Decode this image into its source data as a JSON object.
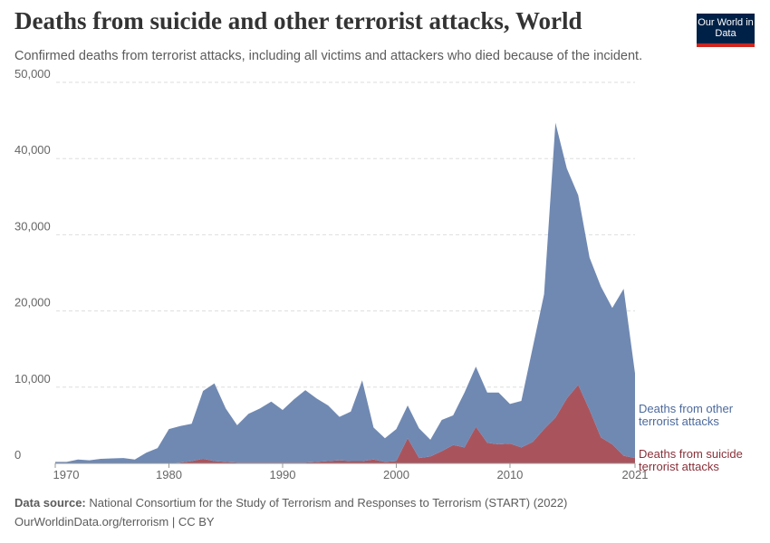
{
  "chart_data": {
    "type": "area",
    "title": "Deaths from suicide and other terrorist attacks, World",
    "subtitle": "Confirmed deaths from terrorist attacks, including all victims and attackers who died because of the incident.",
    "logo": "Our World in Data",
    "source_label": "Data source:",
    "source": "National Consortium for the Study of Terrorism and Responses to Terrorism (START) (2022)",
    "footer": "OurWorldinData.org/terrorism | CC BY",
    "stacked": true,
    "grid": true,
    "x": [
      1970,
      1971,
      1972,
      1973,
      1974,
      1975,
      1976,
      1977,
      1978,
      1979,
      1980,
      1981,
      1982,
      1983,
      1984,
      1985,
      1986,
      1987,
      1988,
      1989,
      1990,
      1991,
      1992,
      1993,
      1994,
      1995,
      1996,
      1997,
      1998,
      1999,
      2000,
      2001,
      2002,
      2003,
      2004,
      2005,
      2006,
      2007,
      2008,
      2009,
      2010,
      2011,
      2012,
      2013,
      2014,
      2015,
      2016,
      2017,
      2018,
      2019,
      2020,
      2021
    ],
    "series": [
      {
        "name": "Deaths from suicide terrorist attacks",
        "color": "#a9545d",
        "label_color": "#883039",
        "values": [
          0,
          0,
          0,
          0,
          0,
          0,
          0,
          0,
          0,
          0,
          0,
          100,
          300,
          600,
          300,
          200,
          100,
          100,
          100,
          100,
          100,
          100,
          100,
          200,
          300,
          400,
          300,
          300,
          500,
          200,
          300,
          3300,
          700,
          900,
          1600,
          2400,
          2100,
          4800,
          2700,
          2500,
          2600,
          2100,
          2800,
          4500,
          6000,
          8500,
          10300,
          7000,
          3400,
          2500,
          1000,
          700
        ]
      },
      {
        "name": "Deaths from other terrorist attacks",
        "color": "#7089b2",
        "label_color": "#4c6a9c",
        "values": [
          200,
          200,
          500,
          400,
          600,
          650,
          700,
          500,
          1400,
          2000,
          4500,
          4800,
          4900,
          8900,
          10200,
          7000,
          4900,
          6400,
          7100,
          8000,
          6900,
          8300,
          9500,
          8300,
          7300,
          5700,
          6500,
          10600,
          4200,
          3100,
          4200,
          4300,
          3900,
          2200,
          4100,
          3900,
          7200,
          7900,
          6600,
          6800,
          5200,
          6100,
          12400,
          17700,
          38700,
          30200,
          24900,
          20000,
          19800,
          17900,
          21900,
          11100
        ]
      }
    ],
    "xlim": [
      1970,
      2021
    ],
    "xticks": [
      1970,
      1980,
      1990,
      2000,
      2010,
      2021
    ],
    "ylim": [
      0,
      50000
    ],
    "yticks": [
      0,
      {
        "value": 10000,
        "label": "10,000"
      },
      {
        "value": 20000,
        "label": "20,000"
      },
      {
        "value": 30000,
        "label": "30,000"
      },
      {
        "value": 40000,
        "label": "40,000"
      },
      {
        "value": 50000,
        "label": "50,000"
      }
    ]
  }
}
